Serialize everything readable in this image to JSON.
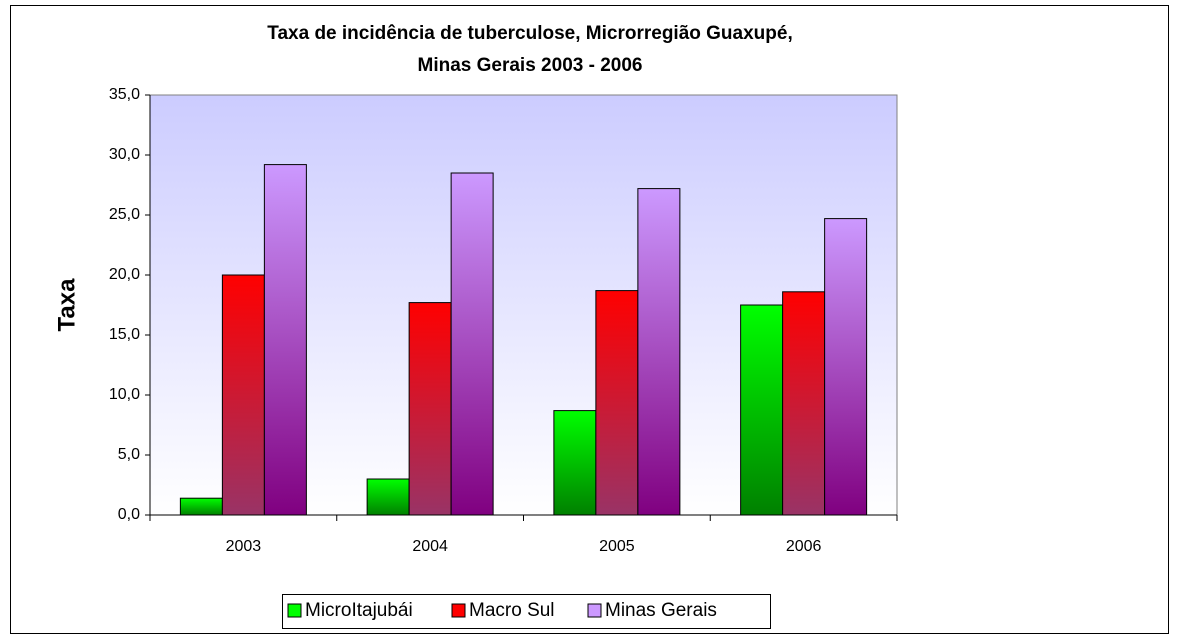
{
  "chart_data": {
    "type": "bar",
    "title": [
      "Taxa de incidência  de tuberculose, Microrregião Guaxupé,",
      "Minas Gerais 2003 - 2006"
    ],
    "y_label": "Taxa",
    "categories": [
      "2003",
      "2004",
      "2005",
      "2006"
    ],
    "series": [
      {
        "name": "MicroItajubái",
        "color": "#00ff00",
        "color_bottom": "#008000",
        "values": [
          1.4,
          3.0,
          8.7,
          17.5
        ]
      },
      {
        "name": "Macro Sul",
        "color": "#ff0000",
        "color_bottom": "#993366",
        "values": [
          20.0,
          17.7,
          18.7,
          18.6
        ]
      },
      {
        "name": "Minas Gerais",
        "color": "#cc99ff",
        "color_bottom": "#800080",
        "values": [
          29.2,
          28.5,
          27.2,
          24.7
        ]
      }
    ],
    "ylim": [
      0,
      35
    ],
    "yticks": [
      {
        "value": 0,
        "label": "0,0"
      },
      {
        "value": 5,
        "label": "5,0"
      },
      {
        "value": 10,
        "label": "10,0"
      },
      {
        "value": 15,
        "label": "15,0"
      },
      {
        "value": 20,
        "label": "20,0"
      },
      {
        "value": 25,
        "label": "25,0"
      },
      {
        "value": 30,
        "label": "30,0"
      },
      {
        "value": 35,
        "label": "35,0"
      }
    ],
    "grid": false,
    "legend": "bottom"
  }
}
